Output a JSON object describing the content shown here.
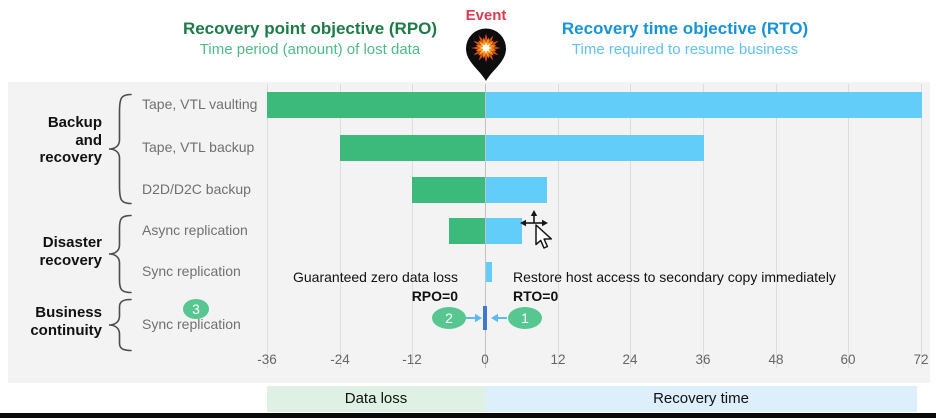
{
  "header": {
    "rpo_title": "Recovery point objective (RPO)",
    "rpo_subtitle": "Time period (amount) of lost data",
    "event_label": "Event",
    "rto_title": "Recovery time objective (RTO)",
    "rto_subtitle": "Time required to resume business"
  },
  "categories": [
    {
      "lines": [
        "Backup",
        "and",
        "recovery"
      ]
    },
    {
      "lines": [
        "Disaster",
        "recovery"
      ]
    },
    {
      "lines": [
        "Business",
        "continuity"
      ]
    }
  ],
  "annotations": {
    "zero_data_loss": "Guaranteed zero data loss",
    "rpo_zero": "RPO=0",
    "restore_host": "Restore host access to secondary copy immediately",
    "rto_zero": "RTO=0"
  },
  "markers": {
    "m1": "1",
    "m2": "2",
    "m3": "3"
  },
  "legend": {
    "data_loss": "Data loss",
    "recovery_time": "Recovery time"
  },
  "colors": {
    "rpo_title": "#1e7b48",
    "rpo_subtitle": "#4eba85",
    "rto_title": "#1894d5",
    "rto_subtitle": "#5ec1f0",
    "event_red": "#dc3a50",
    "bar_green": "#3cba7c",
    "bar_blue": "#63cdf9",
    "panel_bg": "#f3f3f4",
    "gridline": "#dddddd",
    "marker_green": "#58c690",
    "zero_tick_blue": "#3f78c8",
    "arrow_blue": "#5fb8ef",
    "legend_green_bg": "#dff1e5",
    "legend_blue_bg": "#dceffb"
  },
  "chart_data": {
    "type": "bar",
    "subtype": "horizontal-gantt-timeline",
    "title": "RPO vs RTO for data protection methods",
    "x_axis": {
      "ticks": [
        -36,
        -24,
        -12,
        0,
        12,
        24,
        36,
        48,
        60,
        72
      ],
      "zero_event": "Event",
      "grid": true
    },
    "left_zone_label": "Data loss",
    "right_zone_label": "Recovery time",
    "rows": [
      {
        "group": "Backup and recovery",
        "label": "Tape, VTL vaulting",
        "rpo_start": -36,
        "rto_end": 72
      },
      {
        "group": "Backup and recovery",
        "label": "Tape, VTL backup",
        "rpo_start": -24,
        "rto_end": 36
      },
      {
        "group": "Backup and recovery",
        "label": "D2D/D2C backup",
        "rpo_start": -12,
        "rto_end": 10
      },
      {
        "group": "Disaster recovery",
        "label": "Async replication",
        "rpo_start": -6,
        "rto_end": 6
      },
      {
        "group": "Disaster recovery",
        "label": "Sync replication",
        "rpo_start": 0,
        "rto_end": 1
      },
      {
        "group": "Business continuity",
        "label": "Sync replication",
        "rpo_start": 0,
        "rto_end": 0
      }
    ]
  }
}
